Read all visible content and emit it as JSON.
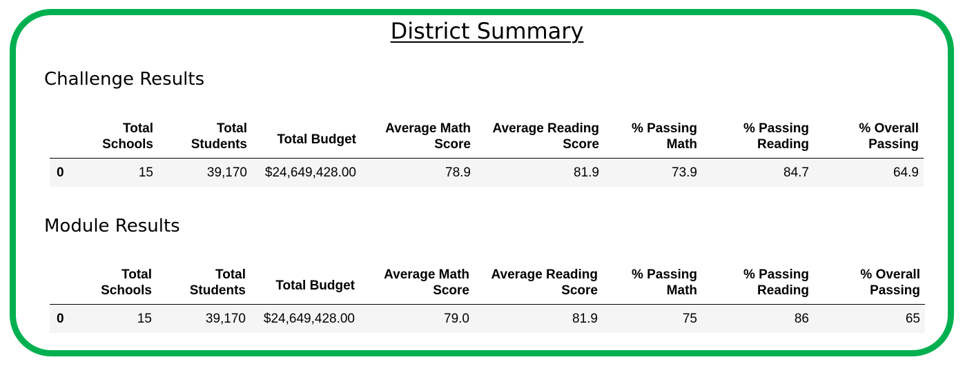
{
  "title": "District Summary",
  "sections": [
    {
      "title": "Challenge Results",
      "columns": [
        [
          "Total",
          "Schools"
        ],
        [
          "Total",
          "Students"
        ],
        [
          "Total Budget"
        ],
        [
          "Average Math",
          "Score"
        ],
        [
          "Average Reading",
          "Score"
        ],
        [
          "% Passing",
          "Math"
        ],
        [
          "% Passing",
          "Reading"
        ],
        [
          "% Overall",
          "Passing"
        ]
      ],
      "rows": [
        [
          "0",
          "15",
          "39,170",
          "$24,649,428.00",
          "78.9",
          "81.9",
          "73.9",
          "84.7",
          "64.9"
        ]
      ]
    },
    {
      "title": "Module Results",
      "columns": [
        [
          "Total",
          "Schools"
        ],
        [
          "Total",
          "Students"
        ],
        [
          "Total Budget"
        ],
        [
          "Average Math",
          "Score"
        ],
        [
          "Average Reading",
          "Score"
        ],
        [
          "% Passing",
          "Math"
        ],
        [
          "% Passing",
          "Reading"
        ],
        [
          "% Overall",
          "Passing"
        ]
      ],
      "rows": [
        [
          "0",
          "15",
          "39,170",
          "$24,649,428.00",
          "79.0",
          "81.9",
          "75",
          "86",
          "65"
        ]
      ]
    }
  ],
  "colors": {
    "frame": "#00b050",
    "row_background": "#f5f5f5"
  }
}
